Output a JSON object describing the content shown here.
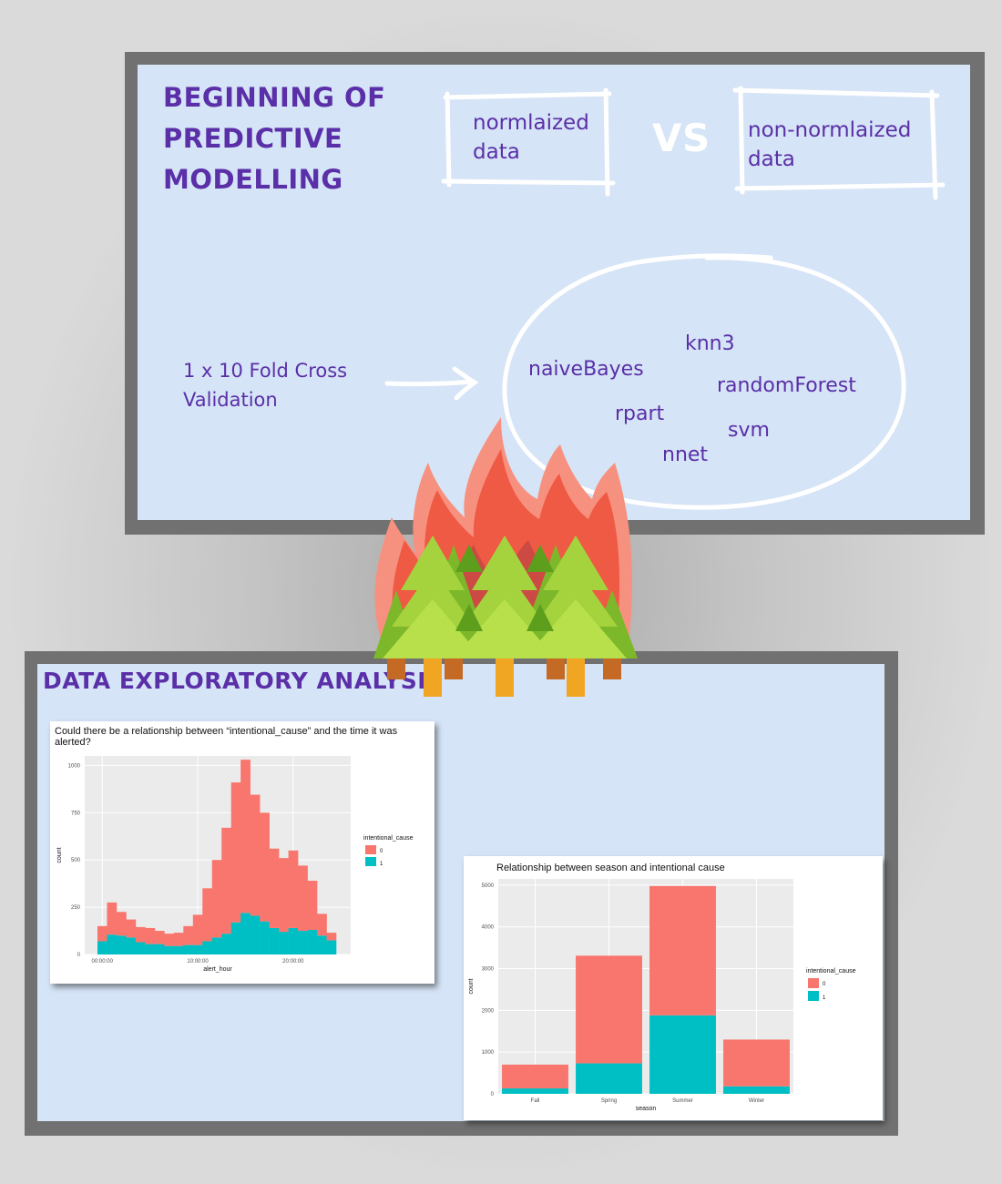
{
  "top_slide": {
    "title_line1": "BEGINNING OF",
    "title_line2": "PREDICTIVE",
    "title_line3": "MODELLING",
    "box_left_line1": "normlaized",
    "box_left_line2": "data",
    "vs_label": "VS",
    "box_right_line1": "non-normlaized",
    "box_right_line2": "data",
    "cv_line1": "1 x 10 Fold Cross",
    "cv_line2": "Validation",
    "models": [
      "naiveBayes",
      "knn3",
      "randomForest",
      "rpart",
      "svm",
      "nnet"
    ]
  },
  "bottom_slide": {
    "title": "DATA EXPLORATORY ANALYSIS",
    "chart1_title_line1": "Could there be a relationship between “intentional_cause” and the time it was",
    "chart1_title_line2": "alerted?",
    "chart2_title": "Relationship between season and intentional cause"
  },
  "colors": {
    "purple": "#5a2fa8",
    "series_0": "#f8766d",
    "series_1": "#00bfc4",
    "slide_bg": "#d5e4f6",
    "frame": "#717171"
  },
  "chart_data": [
    {
      "type": "bar",
      "stacked": true,
      "xlabel": "alert_hour",
      "ylabel": "count",
      "xticks": [
        "00:00:00",
        "10:00:00",
        "20:00:00"
      ],
      "yticks": [
        0,
        250,
        500,
        750,
        1000
      ],
      "ylim": [
        0,
        1050
      ],
      "legend_title": "intentional_cause",
      "legend_position": "right",
      "bins": 25,
      "series": [
        {
          "name": "0",
          "values": [
            80,
            170,
            125,
            95,
            80,
            85,
            70,
            65,
            70,
            100,
            160,
            280,
            410,
            560,
            740,
            810,
            640,
            575,
            420,
            390,
            410,
            345,
            260,
            115,
            40
          ]
        },
        {
          "name": "1",
          "values": [
            70,
            105,
            100,
            90,
            65,
            55,
            55,
            45,
            45,
            50,
            50,
            70,
            90,
            110,
            170,
            220,
            205,
            175,
            140,
            120,
            140,
            125,
            130,
            100,
            75
          ]
        }
      ]
    },
    {
      "type": "bar",
      "stacked": true,
      "categories": [
        "Fall",
        "Spring",
        "Summer",
        "Winter"
      ],
      "xlabel": "season",
      "ylabel": "count",
      "yticks": [
        0,
        1000,
        2000,
        3000,
        4000,
        5000
      ],
      "ylim": [
        0,
        5150
      ],
      "legend_title": "intentional_cause",
      "legend_position": "right",
      "series": [
        {
          "name": "0",
          "values": [
            570,
            2580,
            3100,
            1120
          ]
        },
        {
          "name": "1",
          "values": [
            130,
            730,
            1880,
            180
          ]
        }
      ]
    }
  ]
}
